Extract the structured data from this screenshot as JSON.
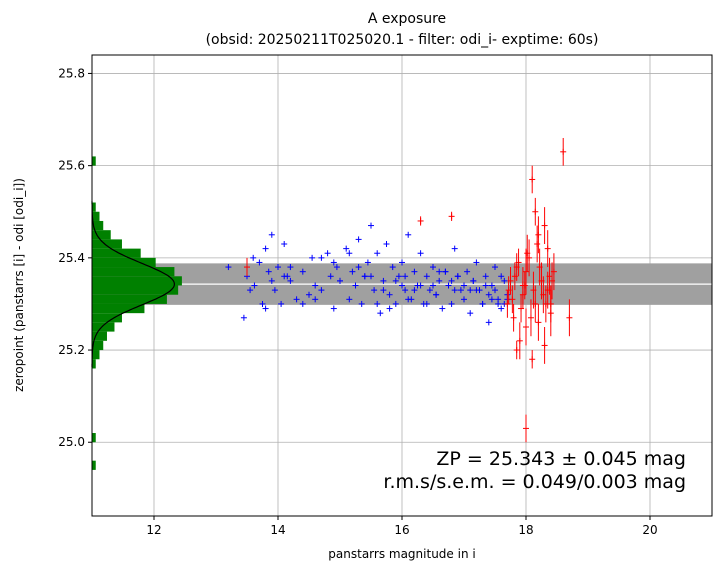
{
  "chart_data": {
    "type": "scatter",
    "title": "A exposure",
    "subtitle": "(obsid: 20250211T025020.1 - filter: odi_i- exptime: 60s)",
    "xlabel": "panstarrs magnitude in i",
    "ylabel": "zeropoint (panstarrs [i] - odi [odi_i])",
    "xlim": [
      11.0,
      21.0
    ],
    "ylim": [
      24.84,
      25.84
    ],
    "xticks": [
      "12",
      "14",
      "16",
      "18",
      "20"
    ],
    "xtick_values": [
      12,
      14,
      16,
      18,
      20
    ],
    "yticks": [
      "25.0",
      "25.2",
      "25.4",
      "25.6",
      "25.8"
    ],
    "ytick_values": [
      25.0,
      25.2,
      25.4,
      25.6,
      25.8
    ],
    "grid": true,
    "zp_value": 25.343,
    "zp_std": 0.045,
    "zp_band_x": [
      11.0,
      21.0
    ],
    "annotation_line1": "ZP = 25.343 ± 0.045 mag",
    "annotation_line2": "r.m.s/s.e.m. = 0.049/0.003 mag",
    "colors": {
      "used": "#0000ff",
      "rejected": "#ff0000",
      "histogram": "#008000",
      "band": "#a0a0a0",
      "zp_line": "#ffffff",
      "gaussian": "#000000"
    },
    "series": [
      {
        "marker": "plus",
        "color": "#0000ff",
        "x": [
          13.2,
          13.45,
          13.5,
          13.6,
          13.62,
          13.7,
          13.75,
          13.8,
          13.85,
          13.9,
          13.95,
          14.0,
          14.05,
          14.1,
          14.15,
          14.2,
          14.3,
          14.4,
          14.5,
          14.55,
          14.6,
          14.7,
          14.8,
          14.85,
          14.9,
          14.95,
          15.0,
          15.1,
          15.15,
          15.2,
          15.25,
          15.3,
          15.35,
          15.4,
          15.45,
          15.5,
          15.55,
          15.6,
          15.65,
          15.7,
          15.75,
          15.8,
          15.85,
          15.9,
          15.95,
          16.0,
          16.05,
          16.1,
          16.15,
          16.2,
          16.25,
          16.3,
          16.35,
          16.4,
          16.45,
          16.5,
          16.55,
          16.6,
          16.65,
          16.7,
          16.75,
          16.8,
          16.85,
          16.9,
          16.95,
          17.0,
          17.05,
          17.1,
          17.15,
          17.2,
          17.25,
          17.3,
          17.35,
          17.4,
          17.45,
          17.5,
          17.55,
          17.6,
          17.65,
          17.7,
          13.55,
          13.8,
          14.2,
          14.6,
          15.0,
          15.4,
          15.8,
          16.2,
          16.6,
          17.0,
          17.4,
          17.6,
          13.9,
          14.4,
          14.9,
          15.3,
          15.7,
          16.1,
          16.5,
          16.9,
          17.3,
          17.5,
          15.15,
          15.5,
          16.0,
          16.4,
          16.8,
          17.2,
          17.7,
          14.1,
          15.6,
          16.3,
          16.7,
          17.1,
          17.45,
          14.7,
          15.9,
          16.55,
          17.35,
          17.65,
          16.05,
          16.85,
          17.15,
          17.55
        ],
        "y": [
          25.38,
          25.27,
          25.36,
          25.4,
          25.34,
          25.39,
          25.3,
          25.42,
          25.37,
          25.45,
          25.33,
          25.38,
          25.3,
          25.43,
          25.36,
          25.35,
          25.31,
          25.37,
          25.32,
          25.4,
          25.34,
          25.33,
          25.41,
          25.36,
          25.29,
          25.38,
          25.35,
          25.42,
          25.31,
          25.37,
          25.34,
          25.44,
          25.3,
          25.36,
          25.39,
          25.47,
          25.33,
          25.41,
          25.28,
          25.35,
          25.43,
          25.32,
          25.38,
          25.3,
          25.36,
          25.39,
          25.33,
          25.45,
          25.31,
          25.37,
          25.34,
          25.41,
          25.3,
          25.36,
          25.33,
          25.38,
          25.32,
          25.35,
          25.29,
          25.37,
          25.34,
          25.3,
          25.42,
          25.36,
          25.33,
          25.31,
          25.37,
          25.28,
          25.35,
          25.39,
          25.33,
          25.3,
          25.36,
          25.26,
          25.34,
          25.38,
          25.31,
          25.29,
          25.35,
          25.32,
          25.33,
          25.29,
          25.38,
          25.31,
          25.35,
          25.36,
          25.29,
          25.33,
          25.37,
          25.34,
          25.32,
          25.36,
          25.35,
          25.3,
          25.39,
          25.38,
          25.33,
          25.31,
          25.34,
          25.36,
          25.3,
          25.33,
          25.41,
          25.36,
          25.34,
          25.3,
          25.35,
          25.33,
          25.31,
          25.36,
          25.3,
          25.34,
          25.37,
          25.33,
          25.31,
          25.4,
          25.35,
          25.32,
          25.34,
          25.3,
          25.36,
          25.33,
          25.35,
          25.3
        ]
      },
      {
        "marker": "plus-errorbar",
        "color": "#ff0000",
        "x": [
          13.5,
          16.3,
          16.8,
          17.7,
          17.75,
          17.8,
          17.85,
          17.9,
          17.95,
          18.0,
          18.0,
          18.05,
          18.1,
          18.15,
          18.2,
          18.25,
          18.3,
          18.35,
          18.4,
          18.45,
          17.72,
          17.82,
          17.92,
          18.02,
          18.12,
          18.22,
          18.32,
          18.42,
          17.78,
          17.88,
          17.98,
          18.08,
          18.18,
          18.28,
          18.38,
          18.1,
          18.3,
          18.0,
          18.2,
          18.4,
          18.15,
          18.35,
          18.6,
          18.7,
          17.85,
          17.95
        ],
        "y": [
          25.38,
          25.48,
          25.49,
          25.3,
          25.35,
          25.27,
          25.38,
          25.22,
          25.32,
          25.25,
          25.03,
          25.4,
          25.57,
          25.3,
          25.45,
          25.35,
          25.21,
          25.42,
          25.28,
          25.37,
          25.33,
          25.36,
          25.29,
          25.41,
          25.33,
          25.38,
          25.3,
          25.35,
          25.31,
          25.39,
          25.34,
          25.27,
          25.43,
          25.32,
          25.36,
          25.18,
          25.47,
          25.37,
          25.26,
          25.3,
          25.5,
          25.33,
          25.63,
          25.27,
          25.2,
          25.34
        ],
        "yerr": [
          0.02,
          0.01,
          0.01,
          0.03,
          0.03,
          0.03,
          0.03,
          0.04,
          0.03,
          0.04,
          0.03,
          0.04,
          0.03,
          0.04,
          0.04,
          0.04,
          0.04,
          0.04,
          0.05,
          0.04,
          0.03,
          0.03,
          0.03,
          0.04,
          0.04,
          0.04,
          0.04,
          0.04,
          0.03,
          0.03,
          0.03,
          0.04,
          0.04,
          0.04,
          0.04,
          0.02,
          0.04,
          0.05,
          0.04,
          0.04,
          0.03,
          0.04,
          0.03,
          0.04,
          0.02,
          0.04
        ]
      }
    ],
    "histogram": {
      "color": "#008000",
      "bin_edges": [
        24.94,
        24.96,
        24.98,
        25.0,
        25.02,
        25.04,
        25.06,
        25.08,
        25.1,
        25.12,
        25.14,
        25.16,
        25.18,
        25.2,
        25.22,
        25.24,
        25.26,
        25.28,
        25.3,
        25.32,
        25.34,
        25.36,
        25.38,
        25.4,
        25.42,
        25.44,
        25.46,
        25.48,
        25.5,
        25.52,
        25.54,
        25.56,
        25.58,
        25.6,
        25.62,
        25.64
      ],
      "counts": [
        1,
        0,
        0,
        1,
        0,
        0,
        0,
        0,
        0,
        0,
        0,
        1,
        2,
        3,
        4,
        6,
        8,
        14,
        20,
        23,
        24,
        22,
        17,
        13,
        8,
        5,
        3,
        2,
        1,
        0,
        0,
        0,
        0,
        1,
        0
      ],
      "gaussian_mean": 25.343,
      "gaussian_sigma": 0.045,
      "gaussian_peak": 22
    }
  }
}
